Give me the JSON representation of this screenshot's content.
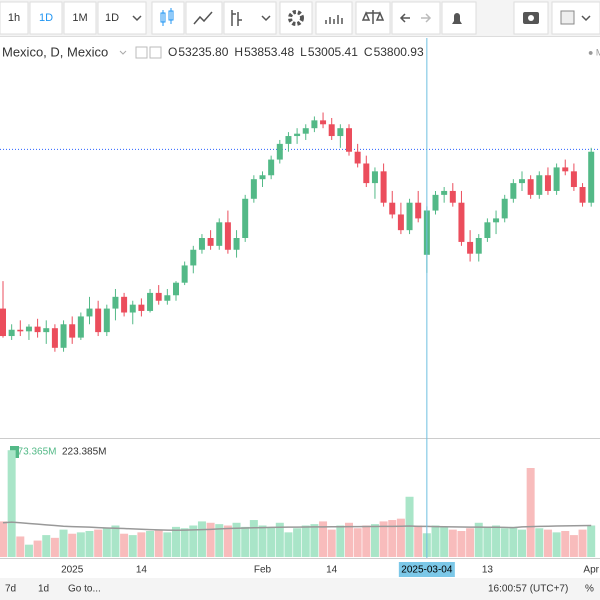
{
  "toolbar": {
    "intervals": [
      "1h",
      "1D",
      "1M",
      "1D"
    ]
  },
  "legend": {
    "symbol": "Mexico, D, Mexico",
    "ohlc": [
      {
        "label": "O",
        "value": "53235.80"
      },
      {
        "label": "H",
        "value": "53853.48"
      },
      {
        "label": "L",
        "value": "53005.41"
      },
      {
        "label": "C",
        "value": "53800.93"
      }
    ],
    "volume": "173.365M",
    "volume_ma": "223.385M"
  },
  "chart_data": {
    "type": "candlestick",
    "categories": [
      null,
      null,
      null,
      null,
      null,
      null,
      null,
      null,
      "2025",
      null,
      null,
      null,
      null,
      null,
      null,
      null,
      "14",
      null,
      null,
      null,
      null,
      null,
      null,
      null,
      null,
      null,
      null,
      null,
      null,
      null,
      "Feb",
      null,
      null,
      null,
      null,
      null,
      null,
      null,
      "14",
      null,
      null,
      null,
      null,
      null,
      null,
      null,
      null,
      null,
      null,
      null,
      null,
      null,
      null,
      null,
      null,
      null,
      "13",
      null,
      null,
      null,
      null,
      null,
      null,
      null,
      null,
      null,
      null,
      null,
      "Apr"
    ],
    "crosshair": {
      "index": 49,
      "label": "2025-03-04"
    },
    "open": [
      52550,
      52200,
      52280,
      52260,
      52320,
      52250,
      52300,
      52050,
      52350,
      52180,
      52450,
      52550,
      52250,
      52550,
      52700,
      52500,
      52600,
      52520,
      52750,
      52650,
      52720,
      52880,
      53100,
      53300,
      53450,
      53350,
      53650,
      53300,
      53450,
      53950,
      54200,
      54250,
      54450,
      54650,
      54750,
      54780,
      54850,
      54950,
      54900,
      54750,
      54850,
      54550,
      54400,
      54150,
      54300,
      53900,
      53750,
      53550,
      53900,
      53235.8,
      53800,
      54000,
      54050,
      53900,
      53400,
      53250,
      53450,
      53650,
      53700,
      53950,
      54150,
      54200,
      54000,
      54250,
      54050,
      54350,
      54300,
      54100,
      53900
    ],
    "high": [
      52900,
      52350,
      52400,
      52350,
      52420,
      52400,
      52350,
      52400,
      52450,
      52500,
      52700,
      52650,
      52600,
      52800,
      52750,
      52650,
      52680,
      52800,
      52850,
      52800,
      52900,
      53150,
      53350,
      53500,
      53550,
      53700,
      53800,
      53550,
      54000,
      54250,
      54300,
      54500,
      54700,
      54800,
      54850,
      54900,
      55000,
      55050,
      54980,
      54900,
      54900,
      54650,
      54500,
      54350,
      54400,
      54050,
      53900,
      53950,
      54050,
      53853.48,
      54050,
      54100,
      54150,
      54050,
      53550,
      53500,
      53700,
      53800,
      54000,
      54200,
      54300,
      54250,
      54300,
      54350,
      54400,
      54450,
      54400,
      54150,
      54600
    ],
    "low": [
      52180,
      52150,
      52200,
      52150,
      52180,
      52100,
      52000,
      52000,
      52100,
      52150,
      52350,
      52200,
      52200,
      52400,
      52450,
      52350,
      52450,
      52500,
      52600,
      52600,
      52650,
      52850,
      53000,
      53250,
      53300,
      53300,
      53250,
      53200,
      53400,
      53900,
      54100,
      54200,
      54400,
      54550,
      54650,
      54700,
      54800,
      54850,
      54700,
      54600,
      54500,
      54350,
      54100,
      53950,
      53850,
      53700,
      53500,
      53500,
      53650,
      53005.41,
      53750,
      53900,
      53850,
      53350,
      53150,
      53150,
      53400,
      53500,
      53650,
      53900,
      54050,
      53950,
      53950,
      54000,
      54000,
      54250,
      54050,
      53850,
      53850
    ],
    "close": [
      52200,
      52280,
      52260,
      52320,
      52250,
      52300,
      52050,
      52350,
      52180,
      52450,
      52550,
      52250,
      52550,
      52700,
      52500,
      52600,
      52520,
      52750,
      52650,
      52720,
      52880,
      53100,
      53300,
      53450,
      53350,
      53650,
      53300,
      53450,
      53950,
      54200,
      54250,
      54450,
      54650,
      54750,
      54780,
      54850,
      54950,
      54900,
      54750,
      54850,
      54550,
      54400,
      54150,
      54300,
      53900,
      53750,
      53550,
      53900,
      53700,
      53800.93,
      54000,
      54050,
      53900,
      53400,
      53250,
      53450,
      53650,
      53700,
      53950,
      54150,
      54200,
      54000,
      54250,
      54050,
      54350,
      54300,
      54100,
      53900,
      54550
    ],
    "volume": [
      260,
      780,
      150,
      90,
      120,
      160,
      140,
      200,
      170,
      180,
      190,
      200,
      210,
      230,
      170,
      160,
      180,
      190,
      200,
      180,
      220,
      210,
      230,
      260,
      250,
      240,
      230,
      250,
      220,
      270,
      230,
      220,
      250,
      180,
      210,
      230,
      240,
      260,
      200,
      230,
      250,
      210,
      230,
      240,
      260,
      270,
      280,
      440,
      230,
      173.365,
      230,
      220,
      200,
      190,
      210,
      250,
      220,
      230,
      210,
      220,
      200,
      650,
      210,
      200,
      180,
      190,
      160,
      200,
      230
    ],
    "volume_ma": [
      250,
      255,
      250,
      245,
      240,
      235,
      230,
      225,
      222,
      220,
      218,
      215,
      212,
      210,
      208,
      205,
      203,
      200,
      198,
      196,
      195,
      196,
      198,
      200,
      202,
      205,
      208,
      210,
      212,
      214,
      215,
      216,
      217,
      218,
      218,
      219,
      220,
      220,
      221,
      221,
      222,
      222,
      223,
      223,
      224,
      224,
      225,
      226,
      224,
      223.385,
      222,
      221,
      220,
      219,
      218,
      218,
      217,
      217,
      216,
      215,
      220,
      222,
      224,
      225,
      226,
      227,
      228,
      229,
      230
    ],
    "price_line": 54580,
    "ylim": [
      50900,
      56000
    ],
    "volume_ylim": [
      0,
      840
    ],
    "up_color": "#53b987",
    "down_color": "#eb4d5c",
    "up_volume_color": "#a9e5c8",
    "down_volume_color": "#f8bcbc",
    "ma_color": "#999999"
  },
  "bottom_bar": {
    "left": [
      "7d",
      "1d",
      "Go to..."
    ],
    "right": [
      "16:00:57 (UTC+7)",
      "%"
    ]
  }
}
